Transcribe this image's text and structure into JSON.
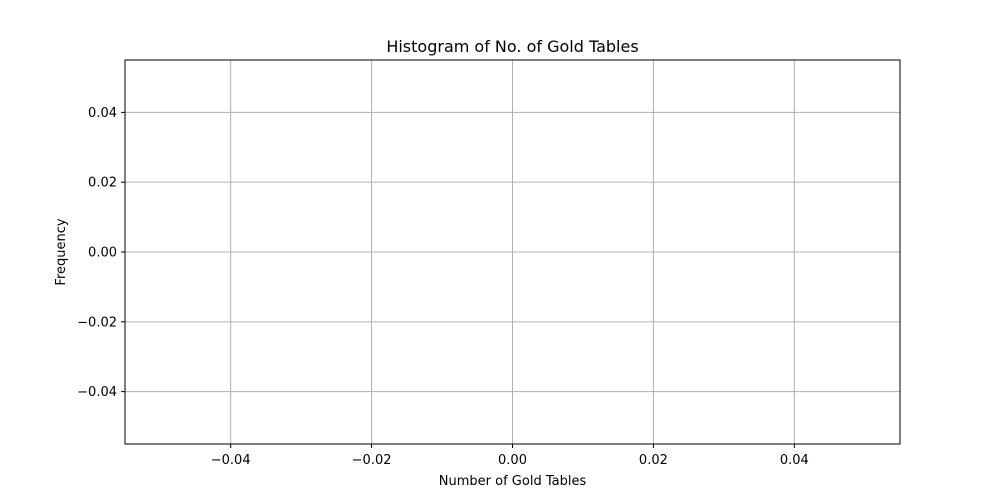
{
  "chart_data": {
    "type": "bar",
    "title": "Histogram of No. of Gold Tables",
    "xlabel": "Number of Gold Tables",
    "ylabel": "Frequency",
    "x": [],
    "values": [],
    "xlim": [
      -0.055,
      0.055
    ],
    "ylim": [
      -0.055,
      0.055
    ],
    "xticks": [
      -0.04,
      -0.02,
      0.0,
      0.02,
      0.04
    ],
    "xtick_labels": [
      "−0.04",
      "−0.02",
      "0.00",
      "0.02",
      "0.04"
    ],
    "yticks": [
      -0.04,
      -0.02,
      0.0,
      0.02,
      0.04
    ],
    "ytick_labels": [
      "−0.04",
      "−0.02",
      "0.00",
      "0.02",
      "0.04"
    ],
    "grid": true,
    "colors": {
      "grid": "#b0b0b0",
      "axes": "#000000",
      "background": "#ffffff"
    }
  }
}
